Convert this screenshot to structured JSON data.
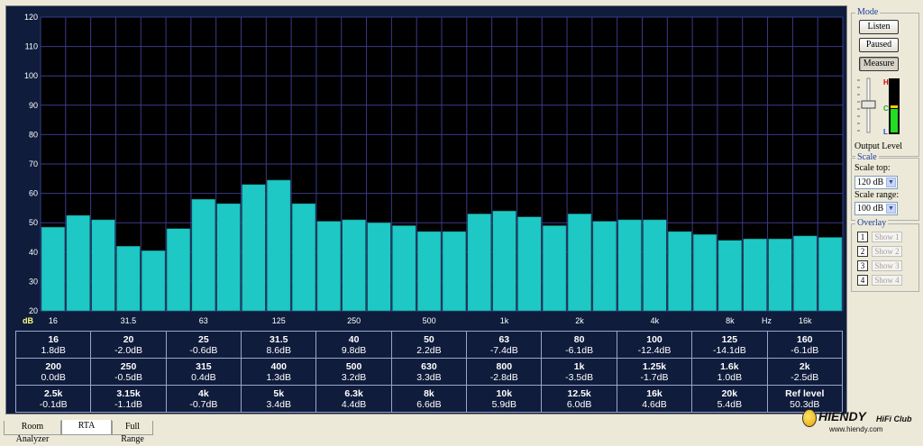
{
  "mode": {
    "title": "Mode",
    "buttons": [
      {
        "label": "Listen",
        "pressed": false
      },
      {
        "label": "Paused",
        "pressed": false
      },
      {
        "label": "Measure",
        "pressed": true
      }
    ],
    "output_level_label": "Output Level",
    "meter_labels": {
      "high": "H",
      "mid": "C",
      "low": "L"
    },
    "meter_level": 0.55
  },
  "scale": {
    "title": "Scale",
    "top_label": "Scale top:",
    "top_value": "120 dB",
    "range_label": "Scale range:",
    "range_value": "100 dB"
  },
  "overlay": {
    "title": "Overlay",
    "items": [
      {
        "num": "1",
        "label": "Show 1"
      },
      {
        "num": "2",
        "label": "Show 2"
      },
      {
        "num": "3",
        "label": "Show 3"
      },
      {
        "num": "4",
        "label": "Show 4"
      }
    ]
  },
  "tabs": [
    {
      "label": "Room Analyzer",
      "active": false
    },
    {
      "label": "RTA",
      "active": true
    },
    {
      "label": "Full Range",
      "active": false
    }
  ],
  "watermark": {
    "title": "HIENDY",
    "sub": "HiFi Club",
    "url": "www.hiendy.com"
  },
  "table": [
    [
      {
        "f": "16",
        "v": "1.8dB"
      },
      {
        "f": "20",
        "v": "-2.0dB"
      },
      {
        "f": "25",
        "v": "-0.6dB"
      },
      {
        "f": "31.5",
        "v": "8.6dB"
      },
      {
        "f": "40",
        "v": "9.8dB"
      },
      {
        "f": "50",
        "v": "2.2dB"
      },
      {
        "f": "63",
        "v": "-7.4dB"
      },
      {
        "f": "80",
        "v": "-6.1dB"
      },
      {
        "f": "100",
        "v": "-12.4dB"
      },
      {
        "f": "125",
        "v": "-14.1dB"
      },
      {
        "f": "160",
        "v": "-6.1dB"
      }
    ],
    [
      {
        "f": "200",
        "v": "0.0dB"
      },
      {
        "f": "250",
        "v": "-0.5dB"
      },
      {
        "f": "315",
        "v": "0.4dB"
      },
      {
        "f": "400",
        "v": "1.3dB"
      },
      {
        "f": "500",
        "v": "3.2dB"
      },
      {
        "f": "630",
        "v": "3.3dB"
      },
      {
        "f": "800",
        "v": "-2.8dB"
      },
      {
        "f": "1k",
        "v": "-3.5dB"
      },
      {
        "f": "1.25k",
        "v": "-1.7dB"
      },
      {
        "f": "1.6k",
        "v": "1.0dB"
      },
      {
        "f": "2k",
        "v": "-2.5dB"
      }
    ],
    [
      {
        "f": "2.5k",
        "v": "-0.1dB"
      },
      {
        "f": "3.15k",
        "v": "-1.1dB"
      },
      {
        "f": "4k",
        "v": "-0.7dB"
      },
      {
        "f": "5k",
        "v": "3.4dB"
      },
      {
        "f": "6.3k",
        "v": "4.4dB"
      },
      {
        "f": "8k",
        "v": "6.6dB"
      },
      {
        "f": "10k",
        "v": "5.9dB"
      },
      {
        "f": "12.5k",
        "v": "6.0dB"
      },
      {
        "f": "16k",
        "v": "4.6dB"
      },
      {
        "f": "20k",
        "v": "5.4dB"
      },
      {
        "f": "Ref level",
        "v": "50.3dB"
      }
    ]
  ],
  "chart_data": {
    "type": "bar",
    "ylabel": "dB",
    "xlabel": "Hz",
    "ylim": [
      20,
      120
    ],
    "yticks": [
      20,
      30,
      40,
      50,
      60,
      70,
      80,
      90,
      100,
      110,
      120
    ],
    "xtick_labels": [
      "16",
      "31.5",
      "63",
      "125",
      "250",
      "500",
      "1k",
      "2k",
      "4k",
      "8k",
      "16k"
    ],
    "grid": true,
    "bar_color": "#1ec8c4",
    "categories": [
      "16",
      "20",
      "25",
      "31.5",
      "40",
      "50",
      "63",
      "80",
      "100",
      "125",
      "160",
      "200",
      "250",
      "315",
      "400",
      "500",
      "630",
      "800",
      "1k",
      "1.25k",
      "1.6k",
      "2k",
      "2.5k",
      "3.15k",
      "4k",
      "5k",
      "6.3k",
      "8k",
      "10k",
      "12.5k",
      "16k",
      "20k"
    ],
    "values": [
      48.5,
      52.5,
      51,
      42,
      40.5,
      48,
      58,
      56.5,
      63,
      64.5,
      56.5,
      50.5,
      51,
      50,
      49,
      47,
      47,
      53,
      54,
      52,
      49,
      53,
      50.5,
      51,
      51,
      47,
      46,
      44,
      44.5,
      44.5,
      45.5,
      45
    ]
  }
}
